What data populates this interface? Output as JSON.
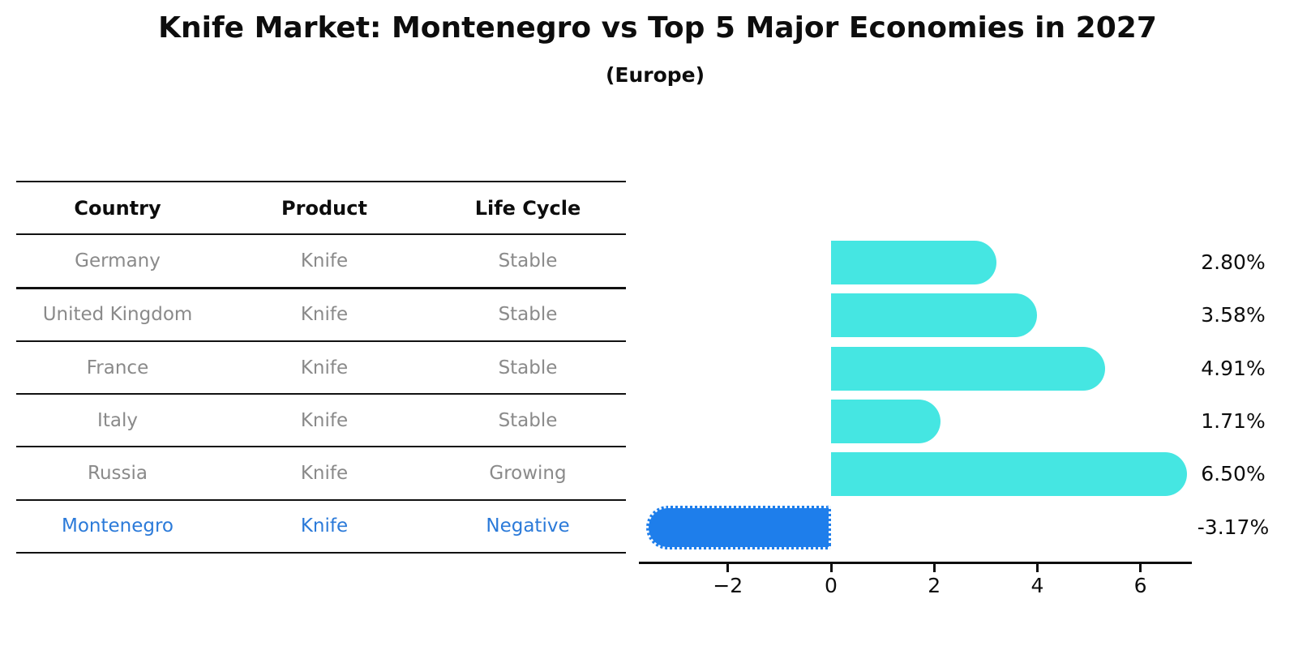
{
  "title": "Knife Market: Montenegro vs Top 5 Major Economies in 2027",
  "subtitle": "(Europe)",
  "table": {
    "headers": [
      "Country",
      "Product",
      "Life Cycle"
    ],
    "rows": [
      {
        "country": "Germany",
        "product": "Knife",
        "life_cycle": "Stable",
        "highlight": false
      },
      {
        "country": "United Kingdom",
        "product": "Knife",
        "life_cycle": "Stable",
        "highlight": false
      },
      {
        "country": "France",
        "product": "Knife",
        "life_cycle": "Stable",
        "highlight": false
      },
      {
        "country": "Italy",
        "product": "Knife",
        "life_cycle": "Stable",
        "highlight": false
      },
      {
        "country": "Russia",
        "product": "Knife",
        "life_cycle": "Growing",
        "highlight": false
      },
      {
        "country": "Montenegro",
        "product": "Knife",
        "life_cycle": "Negative",
        "highlight": true
      }
    ]
  },
  "chart_data": {
    "type": "bar",
    "orientation": "horizontal",
    "categories": [
      "Germany",
      "United Kingdom",
      "France",
      "Italy",
      "Russia",
      "Montenegro"
    ],
    "values": [
      2.8,
      3.58,
      4.91,
      1.71,
      6.5,
      -3.17
    ],
    "value_labels": [
      "2.80%",
      "3.58%",
      "4.91%",
      "1.71%",
      "6.50%",
      "-3.17%"
    ],
    "highlight_index": 5,
    "xticks": [
      -2,
      0,
      2,
      4,
      6
    ],
    "xtick_labels": [
      "−2",
      "0",
      "2",
      "4",
      "6"
    ],
    "xlim": [
      -3.7,
      7.0
    ],
    "grid": false,
    "legend": "none",
    "title": "Knife Market: Montenegro vs Top 5 Major Economies in 2027",
    "subtitle": "(Europe)",
    "xlabel": "",
    "ylabel": ""
  },
  "colors": {
    "bar_positive": "#45E6E2",
    "bar_negative": "#1E7EEB",
    "highlight_text": "#2b7ad9",
    "row_text": "#8a8a8a",
    "axis": "#0d0d0d"
  }
}
